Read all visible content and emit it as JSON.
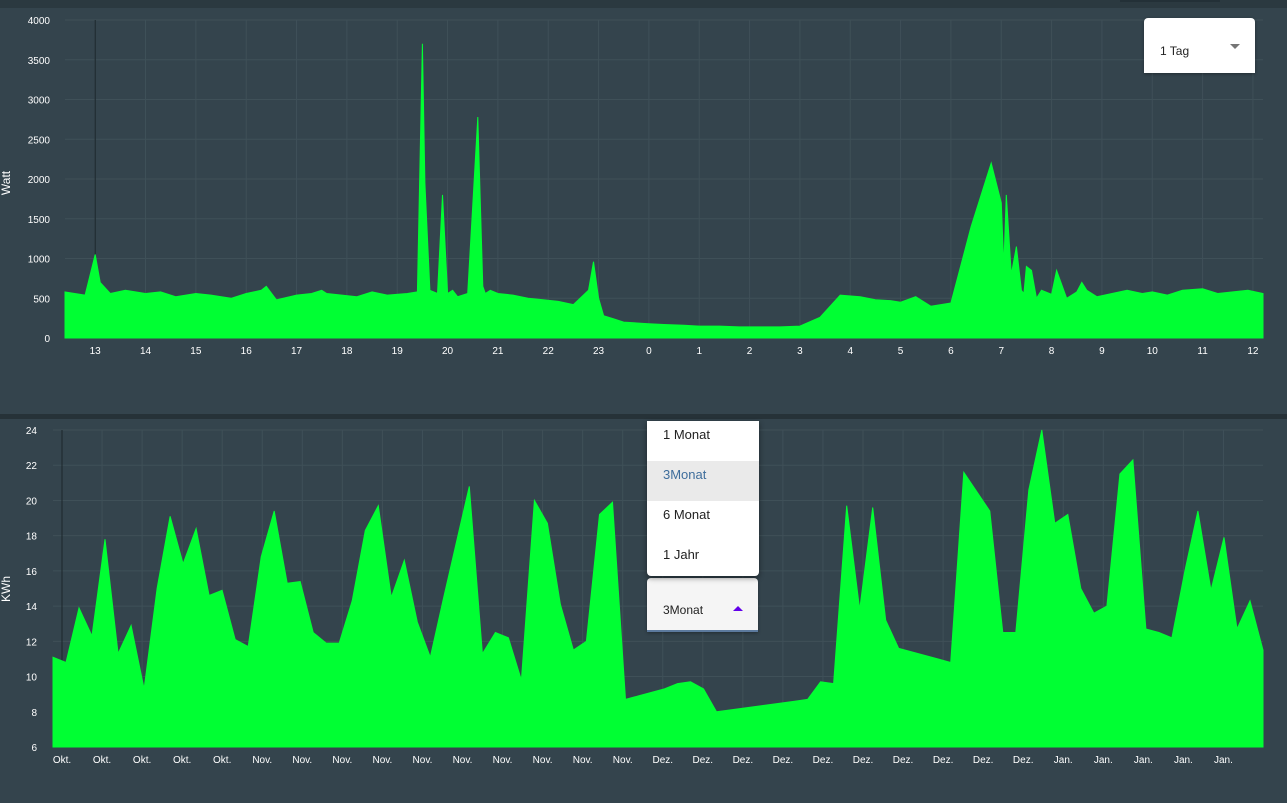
{
  "power_chart": {
    "select_value": "1 Tag",
    "chart_data": {
      "type": "area",
      "ylabel": "Watt",
      "ylim": [
        0,
        4000
      ],
      "yticks": [
        0,
        500,
        1000,
        1500,
        2000,
        2500,
        3000,
        3500,
        4000
      ],
      "xticks": [
        "13",
        "14",
        "15",
        "16",
        "17",
        "18",
        "19",
        "20",
        "21",
        "22",
        "23",
        "0",
        "1",
        "2",
        "3",
        "4",
        "5",
        "6",
        "7",
        "8",
        "9",
        "10",
        "11",
        "12"
      ],
      "x_hours": [
        12.4,
        12.8,
        13,
        13.1,
        13.3,
        13.6,
        14,
        14.3,
        14.6,
        15,
        15.3,
        15.7,
        16,
        16.3,
        16.4,
        16.6,
        17,
        17.3,
        17.5,
        17.6,
        17.9,
        18.2,
        18.5,
        18.8,
        19.2,
        19.4,
        19.5,
        19.55,
        19.65,
        19.8,
        19.9,
        20.0,
        20.1,
        20.2,
        20.4,
        20.6,
        20.7,
        20.75,
        20.85,
        21,
        21.3,
        21.6,
        21.9,
        22.2,
        22.5,
        22.8,
        22.9,
        23.0,
        23.1,
        23.3,
        23.5,
        24.0,
        24.3,
        24.7,
        25,
        25.4,
        25.8,
        26.2,
        26.6,
        27,
        27.4,
        27.8,
        28.2,
        28.5,
        28.8,
        29,
        29.3,
        29.6,
        30,
        30.4,
        30.8,
        31.0,
        31.05,
        31.1,
        31.2,
        31.3,
        31.4,
        31.45,
        31.5,
        31.6,
        31.7,
        31.8,
        32,
        32.1,
        32.3,
        32.5,
        32.6,
        32.7,
        32.9,
        33.2,
        33.5,
        33.8,
        34,
        34.3,
        34.6,
        35,
        35.3,
        35.6,
        35.9,
        36.2
      ],
      "values": [
        580,
        540,
        1050,
        700,
        560,
        600,
        560,
        580,
        520,
        560,
        540,
        500,
        560,
        600,
        650,
        480,
        540,
        560,
        600,
        560,
        540,
        520,
        580,
        540,
        560,
        580,
        3700,
        1950,
        600,
        560,
        1800,
        560,
        600,
        520,
        560,
        2780,
        650,
        560,
        600,
        560,
        540,
        500,
        480,
        460,
        420,
        600,
        960,
        500,
        280,
        240,
        200,
        180,
        170,
        160,
        150,
        150,
        140,
        140,
        140,
        150,
        260,
        540,
        520,
        480,
        470,
        450,
        520,
        400,
        440,
        1400,
        2200,
        1700,
        900,
        1800,
        800,
        1150,
        600,
        560,
        900,
        850,
        500,
        600,
        550,
        850,
        500,
        580,
        700,
        600,
        520,
        560,
        600,
        560,
        580,
        540,
        600,
        620,
        560,
        580,
        600,
        560
      ]
    }
  },
  "energy_chart": {
    "select_value": "3Monat",
    "menu_options": [
      "1 Monat",
      "3Monat",
      "6 Monat",
      "1 Jahr"
    ],
    "selected_option": "3Monat",
    "chart_data": {
      "type": "area",
      "ylabel": "KWh",
      "ylim": [
        6,
        24
      ],
      "yticks": [
        6,
        8,
        10,
        12,
        14,
        16,
        18,
        20,
        22,
        24
      ],
      "xticks": [
        "Okt.",
        "Okt.",
        "Okt.",
        "Okt.",
        "Okt.",
        "Nov.",
        "Nov.",
        "Nov.",
        "Nov.",
        "Nov.",
        "Nov.",
        "Nov.",
        "Nov.",
        "Nov.",
        "Nov.",
        "Dez.",
        "Dez.",
        "Dez.",
        "Dez.",
        "Dez.",
        "Dez.",
        "Dez.",
        "Dez.",
        "Dez.",
        "Dez.",
        "Jan.",
        "Jan.",
        "Jan.",
        "Jan.",
        "Jan."
      ],
      "values": [
        11.1,
        10.8,
        13.9,
        12.3,
        17.8,
        11.3,
        12.9,
        9.3,
        15.0,
        19.1,
        16.4,
        18.4,
        14.6,
        14.9,
        12.1,
        11.7,
        16.8,
        19.4,
        15.3,
        15.4,
        12.5,
        11.9,
        11.9,
        14.3,
        18.3,
        19.7,
        14.5,
        16.6,
        13.1,
        11.1,
        14.4,
        17.6,
        20.8,
        11.3,
        12.5,
        12.2,
        9.8,
        20.0,
        18.7,
        14.1,
        11.5,
        12.0,
        19.2,
        19.9,
        8.7,
        8.9,
        9.1,
        9.3,
        9.6,
        9.7,
        9.3,
        8.0,
        8.1,
        8.2,
        8.3,
        8.4,
        8.5,
        8.6,
        8.7,
        9.7,
        9.6,
        19.7,
        13.8,
        19.6,
        13.2,
        11.6,
        11.4,
        11.2,
        11.0,
        10.8,
        21.6,
        20.5,
        19.4,
        12.5,
        12.5,
        20.6,
        24.0,
        18.7,
        19.2,
        15.0,
        13.6,
        14.0,
        21.5,
        22.3,
        12.7,
        12.5,
        12.2,
        16.0,
        19.4,
        14.9,
        17.9,
        12.7,
        14.3,
        11.5
      ]
    }
  }
}
